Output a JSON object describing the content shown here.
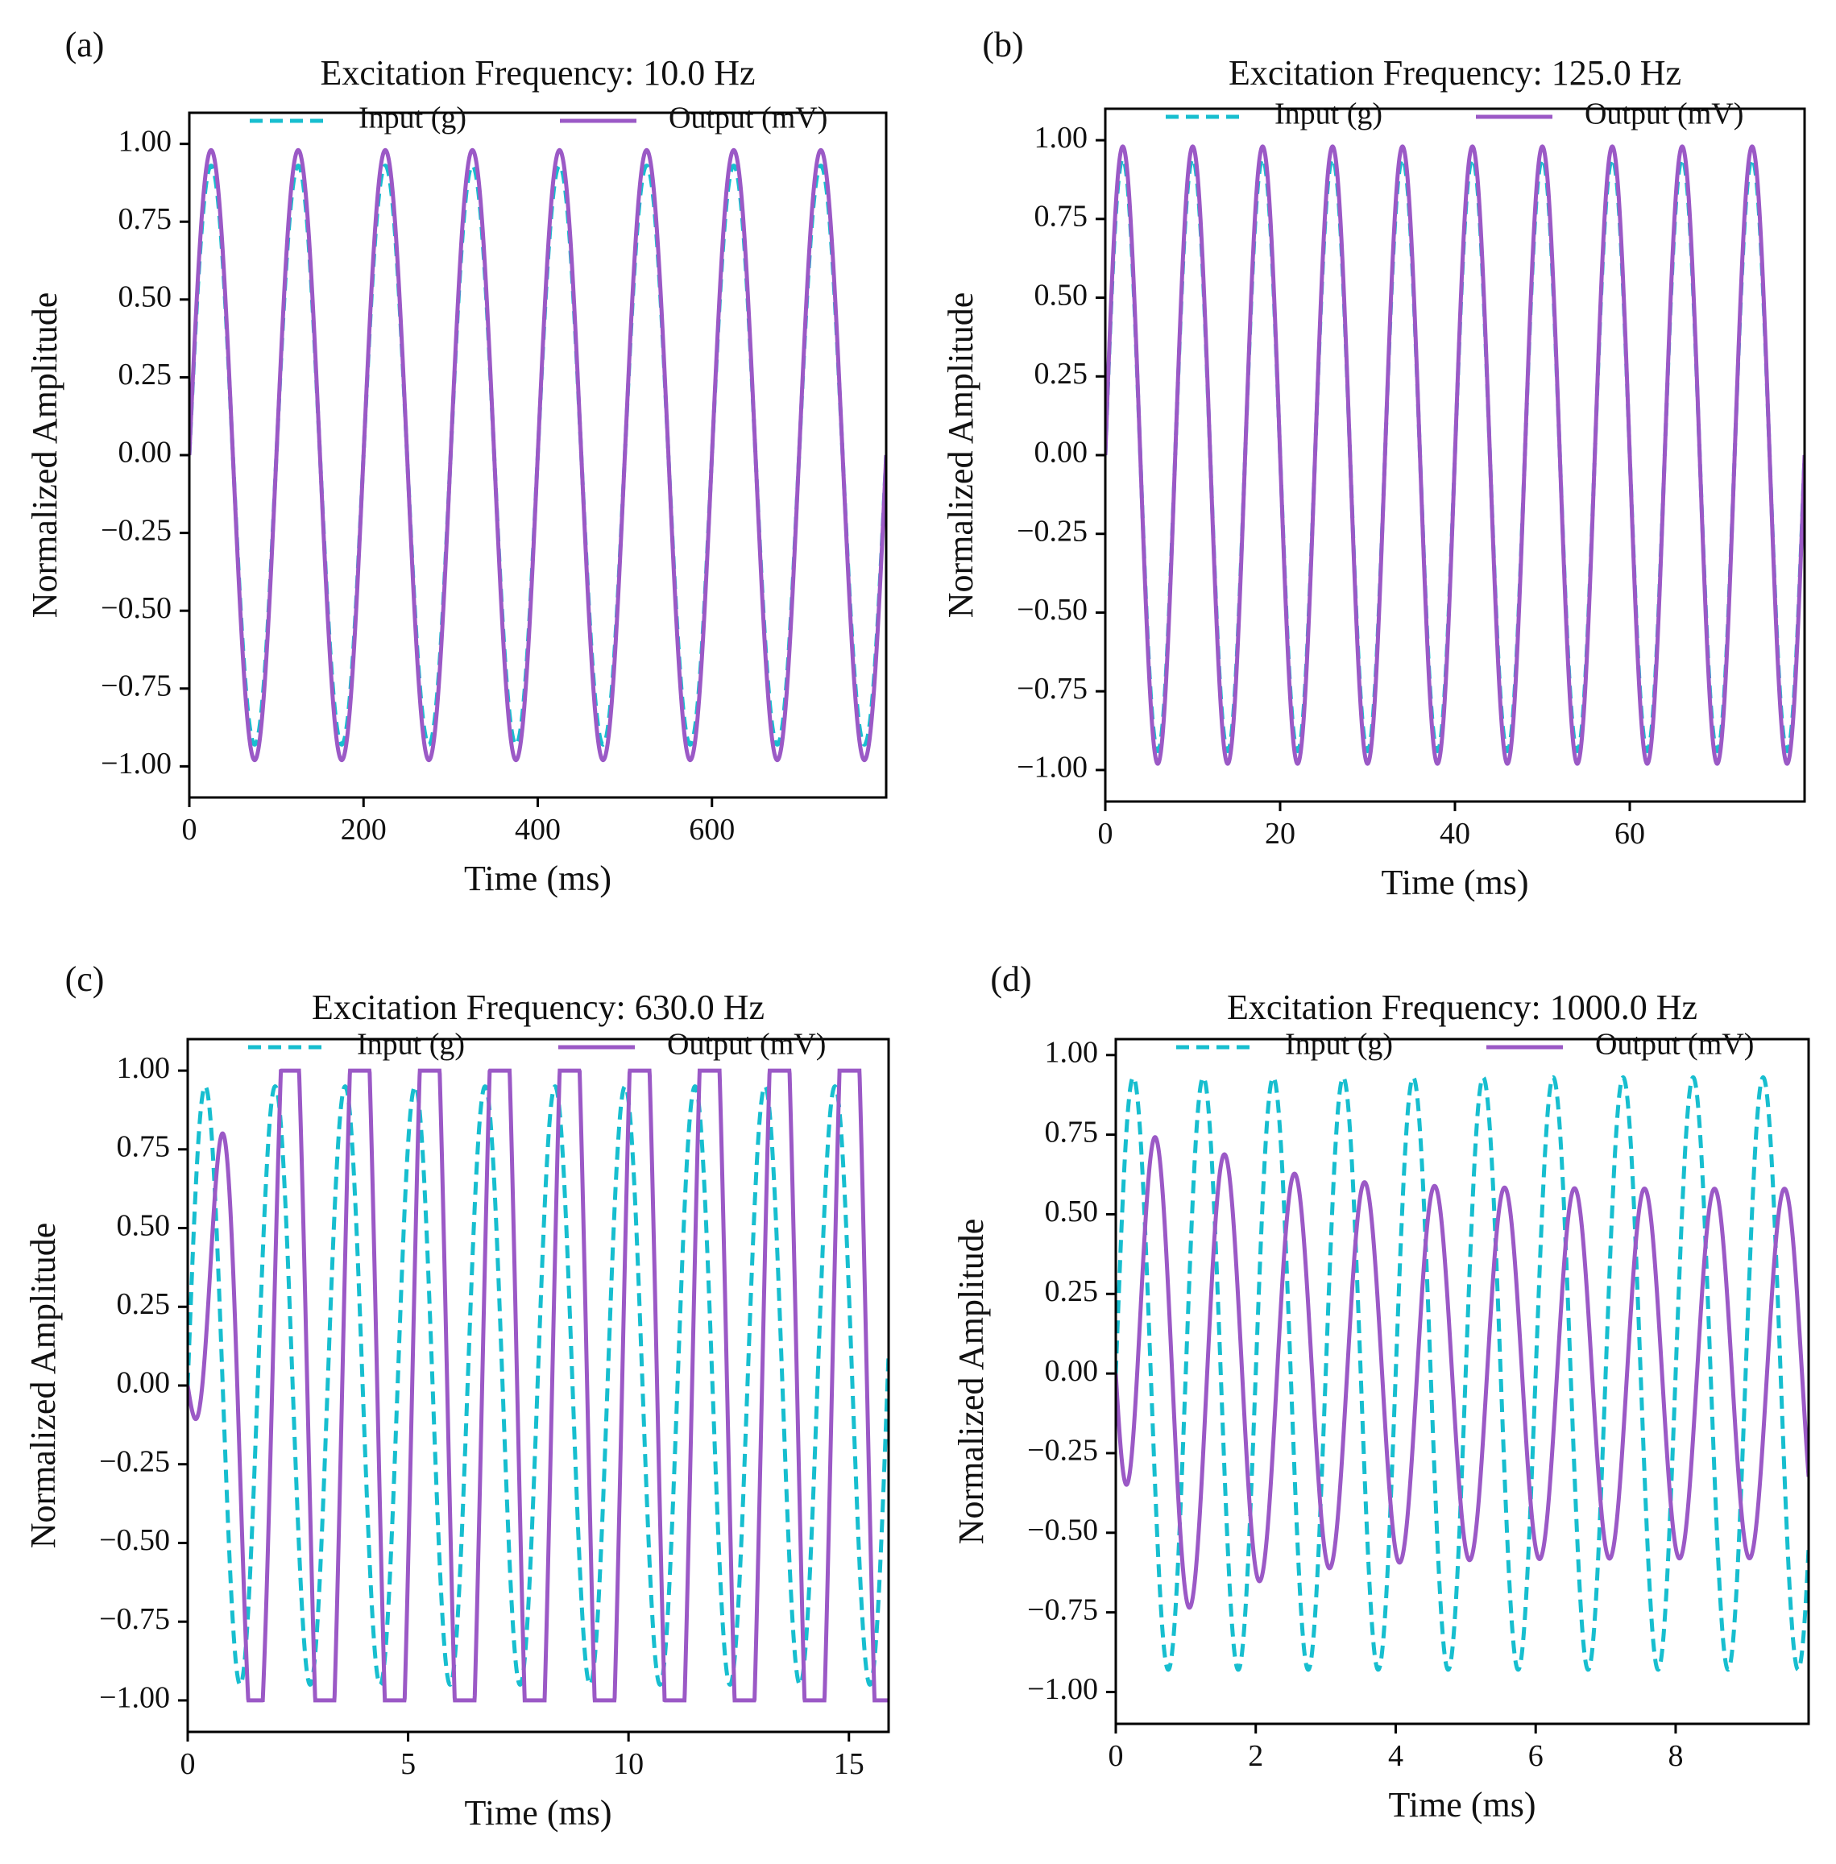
{
  "chart_data": [
    {
      "type": "line",
      "panel_label": "(a)",
      "title": "Excitation Frequency: 10.0 Hz",
      "xlabel": "Time (ms)",
      "ylabel": "Normalized Amplitude",
      "xlim": [
        0,
        800
      ],
      "ylim": [
        -1.1,
        1.1
      ],
      "xticks": [
        0,
        200,
        400,
        600
      ],
      "xtick_labels": [
        "0",
        "200",
        "400",
        "600"
      ],
      "yticks": [
        1.0,
        0.75,
        0.5,
        0.25,
        0.0,
        -0.25,
        -0.5,
        -0.75,
        -1.0
      ],
      "ytick_labels": [
        "1.00",
        "0.75",
        "0.50",
        "0.25",
        "0.00",
        "−0.25",
        "−0.50",
        "−0.75",
        "−1.00"
      ],
      "legend": {
        "placement": "top",
        "entries": [
          "Input (g)",
          "Output (mV)"
        ]
      },
      "series": [
        {
          "name": "Input (g)",
          "style": "dashed",
          "color": "#17becf",
          "frequency_hz": 10,
          "amplitude": 0.93,
          "phase_deg": 0,
          "t_start_ms": 0,
          "t_end_ms": 800
        },
        {
          "name": "Output (mV)",
          "style": "solid",
          "color": "#9b59c6",
          "frequency_hz": 10,
          "amplitude": 0.98,
          "phase_deg": 0,
          "t_start_ms": 0,
          "t_end_ms": 800
        }
      ]
    },
    {
      "type": "line",
      "panel_label": "(b)",
      "title": "Excitation Frequency: 125.0 Hz",
      "xlabel": "Time (ms)",
      "ylabel": "Normalized Amplitude",
      "xlim": [
        0,
        80
      ],
      "ylim": [
        -1.1,
        1.1
      ],
      "xticks": [
        0,
        20,
        40,
        60
      ],
      "xtick_labels": [
        "0",
        "20",
        "40",
        "60"
      ],
      "yticks": [
        1.0,
        0.75,
        0.5,
        0.25,
        0.0,
        -0.25,
        -0.5,
        -0.75,
        -1.0
      ],
      "ytick_labels": [
        "1.00",
        "0.75",
        "0.50",
        "0.25",
        "0.00",
        "−0.25",
        "−0.50",
        "−0.75",
        "−1.00"
      ],
      "legend": {
        "placement": "top",
        "entries": [
          "Input (g)",
          "Output (mV)"
        ]
      },
      "series": [
        {
          "name": "Input (g)",
          "style": "dashed",
          "color": "#17becf",
          "frequency_hz": 125,
          "amplitude": 0.94,
          "phase_deg": 0,
          "t_start_ms": 0,
          "t_end_ms": 80
        },
        {
          "name": "Output (mV)",
          "style": "solid",
          "color": "#9b59c6",
          "frequency_hz": 125,
          "amplitude": 0.98,
          "phase_deg": 0,
          "t_start_ms": 0,
          "t_end_ms": 80
        }
      ]
    },
    {
      "type": "line",
      "panel_label": "(c)",
      "title": "Excitation Frequency: 630.0 Hz",
      "xlabel": "Time (ms)",
      "ylabel": "Normalized Amplitude",
      "xlim": [
        0,
        15.9
      ],
      "ylim": [
        -1.1,
        1.1
      ],
      "xticks": [
        0,
        5,
        10,
        15
      ],
      "xtick_labels": [
        "0",
        "5",
        "10",
        "15"
      ],
      "yticks": [
        1.0,
        0.75,
        0.5,
        0.25,
        0.0,
        -0.25,
        -0.5,
        -0.75,
        -1.0
      ],
      "ytick_labels": [
        "1.00",
        "0.75",
        "0.50",
        "0.25",
        "0.00",
        "−0.25",
        "−0.50",
        "−0.75",
        "−1.00"
      ],
      "legend": {
        "placement": "top",
        "entries": [
          "Input (g)",
          "Output (mV)"
        ]
      },
      "series": [
        {
          "name": "Input (g)",
          "style": "dashed",
          "color": "#17becf",
          "frequency_hz": 630,
          "amplitude": 0.95,
          "phase_deg": 0,
          "t_start_ms": 0,
          "t_end_ms": 15.9
        },
        {
          "name": "Output (mV)",
          "style": "solid",
          "color": "#9b59c6",
          "frequency_hz": 630,
          "amplitude": 1.6,
          "phase_deg": -75,
          "clip": 1.0,
          "rise_ms": 1.0,
          "t_start_ms": 0,
          "t_end_ms": 15.9
        }
      ]
    },
    {
      "type": "line",
      "panel_label": "(d)",
      "title": "Excitation Frequency: 1000.0 Hz",
      "xlabel": "Time (ms)",
      "ylabel": "Normalized Amplitude",
      "xlim": [
        0,
        9.9
      ],
      "ylim": [
        -1.1,
        1.05
      ],
      "xticks": [
        0,
        2,
        4,
        6,
        8
      ],
      "xtick_labels": [
        "0",
        "2",
        "4",
        "6",
        "8"
      ],
      "yticks": [
        1.0,
        0.75,
        0.5,
        0.25,
        0.0,
        -0.25,
        -0.5,
        -0.75,
        -1.0
      ],
      "ytick_labels": [
        "1.00",
        "0.75",
        "0.50",
        "0.25",
        "0.00",
        "−0.25",
        "−0.50",
        "−0.75",
        "−1.00"
      ],
      "legend": {
        "placement": "top",
        "entries": [
          "Input (g)",
          "Output (mV)"
        ]
      },
      "series": [
        {
          "name": "Input (g)",
          "style": "dashed",
          "color": "#17becf",
          "frequency_hz": 1000,
          "amplitude": 0.93,
          "phase_deg": 0,
          "t_start_ms": 0,
          "t_end_ms": 9.9
        },
        {
          "name": "Output (mV)",
          "style": "solid",
          "color": "#9b59c6",
          "frequency_hz": 1000,
          "amplitude": 0.58,
          "phase_deg": -110,
          "transient_amplitude": 0.4,
          "transient_decay_ms": 1.2,
          "t_start_ms": 0,
          "t_end_ms": 9.9
        }
      ]
    }
  ]
}
